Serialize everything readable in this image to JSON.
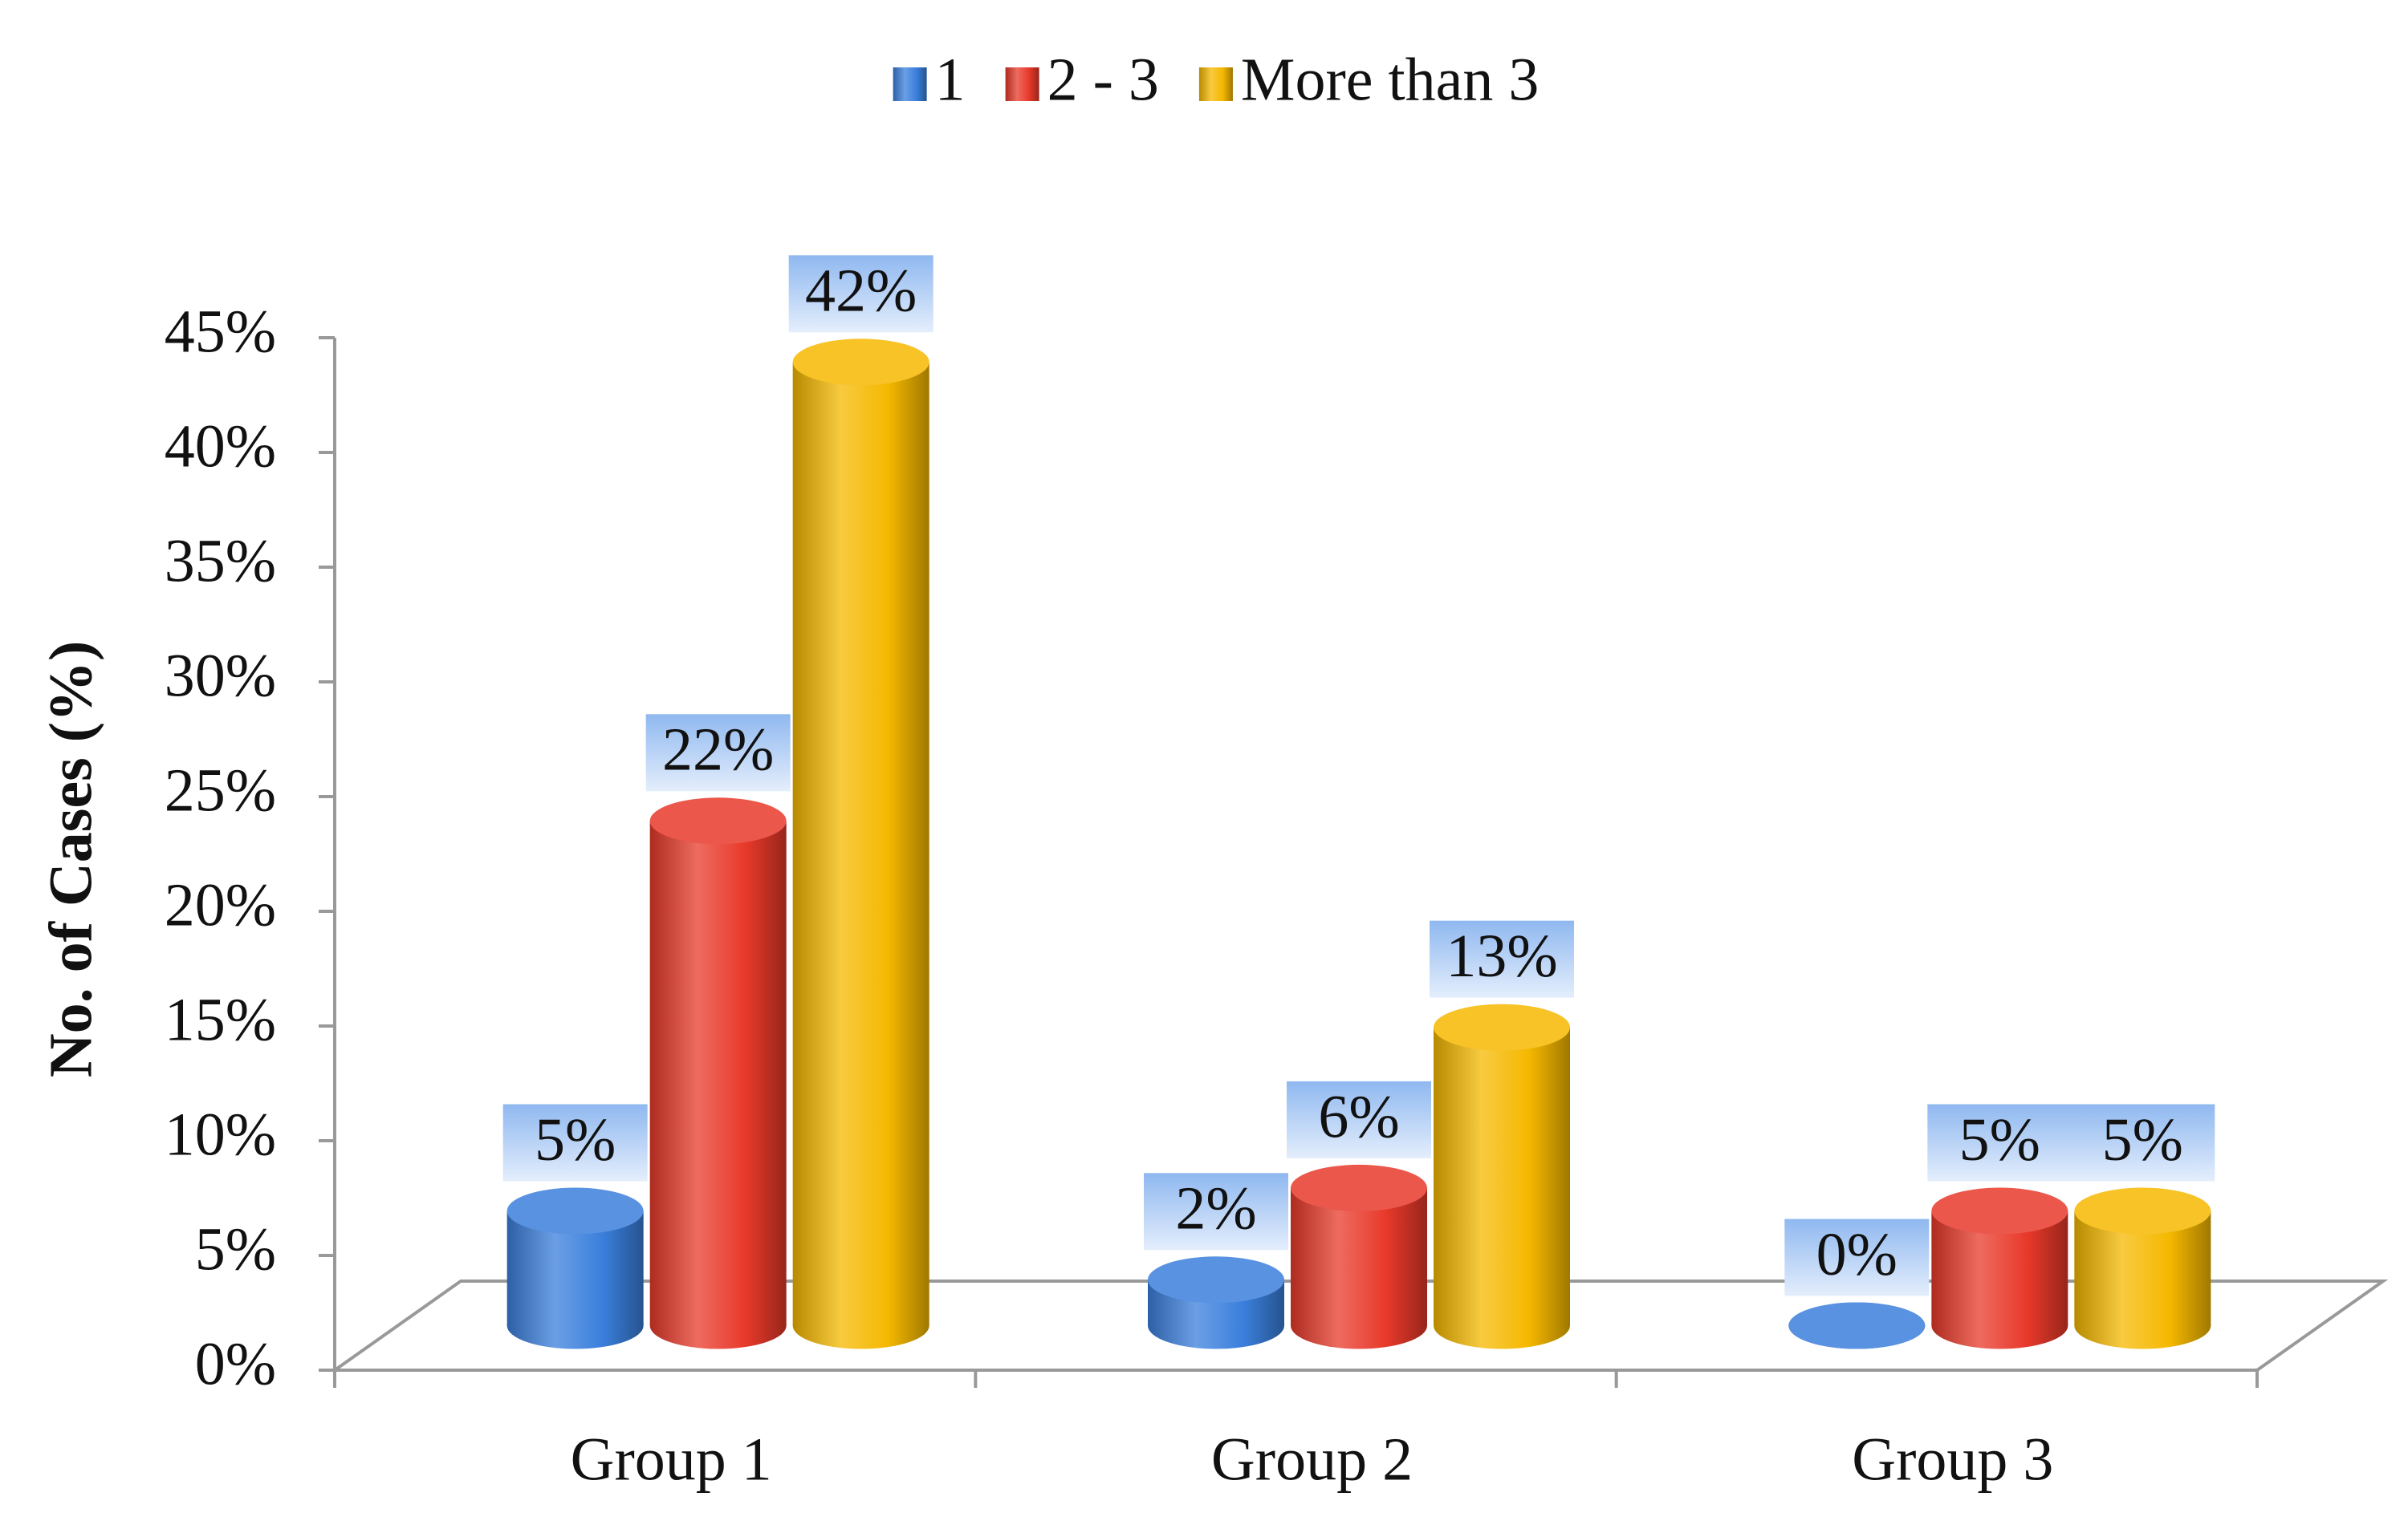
{
  "chart_data": {
    "type": "bar",
    "y_label": "No. of Cases (%)",
    "categories": [
      "Group 1",
      "Group 2",
      "Group 3"
    ],
    "series": [
      {
        "name": "1",
        "color": "#3a7fdc",
        "values": [
          5,
          2,
          0
        ],
        "value_labels": [
          "5%",
          "2%",
          "0%"
        ]
      },
      {
        "name": "2 - 3",
        "color": "#e8392a",
        "values": [
          22,
          6,
          5
        ],
        "value_labels": [
          "22%",
          "6%",
          "5%"
        ]
      },
      {
        "name": "More than 3",
        "color": "#f5b800",
        "values": [
          42,
          13,
          5
        ],
        "value_labels": [
          "42%",
          "13%",
          "5%"
        ]
      }
    ],
    "ylim": [
      0,
      45
    ],
    "yticks": [
      {
        "value": 0,
        "label": "0%"
      },
      {
        "value": 5,
        "label": "5%"
      },
      {
        "value": 10,
        "label": "10%"
      },
      {
        "value": 15,
        "label": "15%"
      },
      {
        "value": 20,
        "label": "20%"
      },
      {
        "value": 25,
        "label": "25%"
      },
      {
        "value": 30,
        "label": "30%"
      },
      {
        "value": 35,
        "label": "35%"
      },
      {
        "value": 40,
        "label": "40%"
      },
      {
        "value": 45,
        "label": "45%"
      }
    ],
    "legend": "top"
  }
}
